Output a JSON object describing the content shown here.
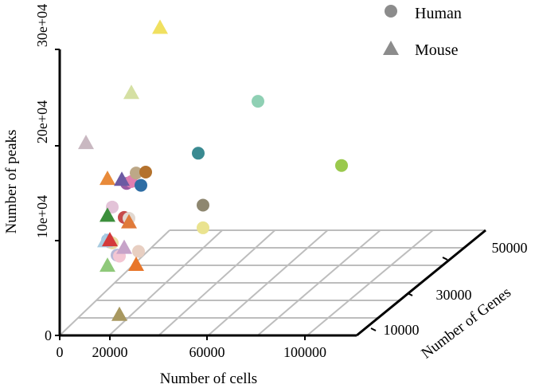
{
  "chart_data": {
    "type": "scatter",
    "projection": "3d",
    "xlabel": "Number of cells",
    "ylabel": "Number of peaks",
    "zlabel": "Number of Genes",
    "xticks": [
      "0",
      "20000",
      "60000",
      "100000"
    ],
    "yticks": [
      "0",
      "10e+04",
      "20e+04",
      "30e+04"
    ],
    "zticks": [
      "10000",
      "30000",
      "50000"
    ],
    "legend": [
      {
        "name": "Human",
        "shape": "circle",
        "color": "#8c8c8c"
      },
      {
        "name": "Mouse",
        "shape": "triangle",
        "color": "#8c8c8c"
      }
    ],
    "legend_position": "top-right",
    "grid": "floor",
    "series": [
      {
        "name": "Human",
        "shape": "circle",
        "points": [
          {
            "x": 20000,
            "y": 101000,
            "color": "#9dbfe3"
          },
          {
            "x": 21000,
            "y": 99000,
            "color": "#c9a8c9"
          },
          {
            "x": 22000,
            "y": 98000,
            "color": "#e8dba0"
          },
          {
            "x": 22000,
            "y": 136000,
            "color": "#e3c3d8"
          },
          {
            "x": 24000,
            "y": 85000,
            "color": "#b6b8d6"
          },
          {
            "x": 25000,
            "y": 84000,
            "color": "#f3c6d3"
          },
          {
            "x": 27000,
            "y": 125000,
            "color": "#c64a4a"
          },
          {
            "x": 29000,
            "y": 124000,
            "color": "#e2d8d0"
          },
          {
            "x": 28000,
            "y": 161000,
            "color": "#9b5ca3"
          },
          {
            "x": 30000,
            "y": 163000,
            "color": "#e07fb0"
          },
          {
            "x": 32000,
            "y": 172000,
            "color": "#bda887"
          },
          {
            "x": 34000,
            "y": 159000,
            "color": "#2e6da4"
          },
          {
            "x": 36000,
            "y": 173000,
            "color": "#b4722d"
          },
          {
            "x": 33000,
            "y": 89000,
            "color": "#e8cfc2"
          },
          {
            "x": 58000,
            "y": 193000,
            "color": "#3a8a91"
          },
          {
            "x": 60000,
            "y": 138000,
            "color": "#8e8770"
          },
          {
            "x": 60000,
            "y": 114000,
            "color": "#eae38f"
          },
          {
            "x": 83000,
            "y": 248000,
            "color": "#8fd0b4"
          },
          {
            "x": 118000,
            "y": 180000,
            "color": "#9ac94d"
          }
        ]
      },
      {
        "name": "Mouse",
        "shape": "triangle",
        "points": [
          {
            "x": 11000,
            "y": 205000,
            "color": "#c9b8c1"
          },
          {
            "x": 20000,
            "y": 167000,
            "color": "#e88a3a"
          },
          {
            "x": 20000,
            "y": 128000,
            "color": "#3c8f3c"
          },
          {
            "x": 19000,
            "y": 101000,
            "color": "#a8cbe0"
          },
          {
            "x": 21000,
            "y": 102000,
            "color": "#d43a3a"
          },
          {
            "x": 20000,
            "y": 75000,
            "color": "#8fc97a"
          },
          {
            "x": 26000,
            "y": 166000,
            "color": "#6c5aa3"
          },
          {
            "x": 27000,
            "y": 94000,
            "color": "#c7a3c9"
          },
          {
            "x": 29000,
            "y": 121000,
            "color": "#e07a3a"
          },
          {
            "x": 30000,
            "y": 258000,
            "color": "#d5e0a3"
          },
          {
            "x": 32000,
            "y": 76000,
            "color": "#e8762a"
          },
          {
            "x": 25000,
            "y": 23000,
            "color": "#a89860"
          },
          {
            "x": 42000,
            "y": 327000,
            "color": "#f0e060"
          }
        ]
      }
    ]
  }
}
